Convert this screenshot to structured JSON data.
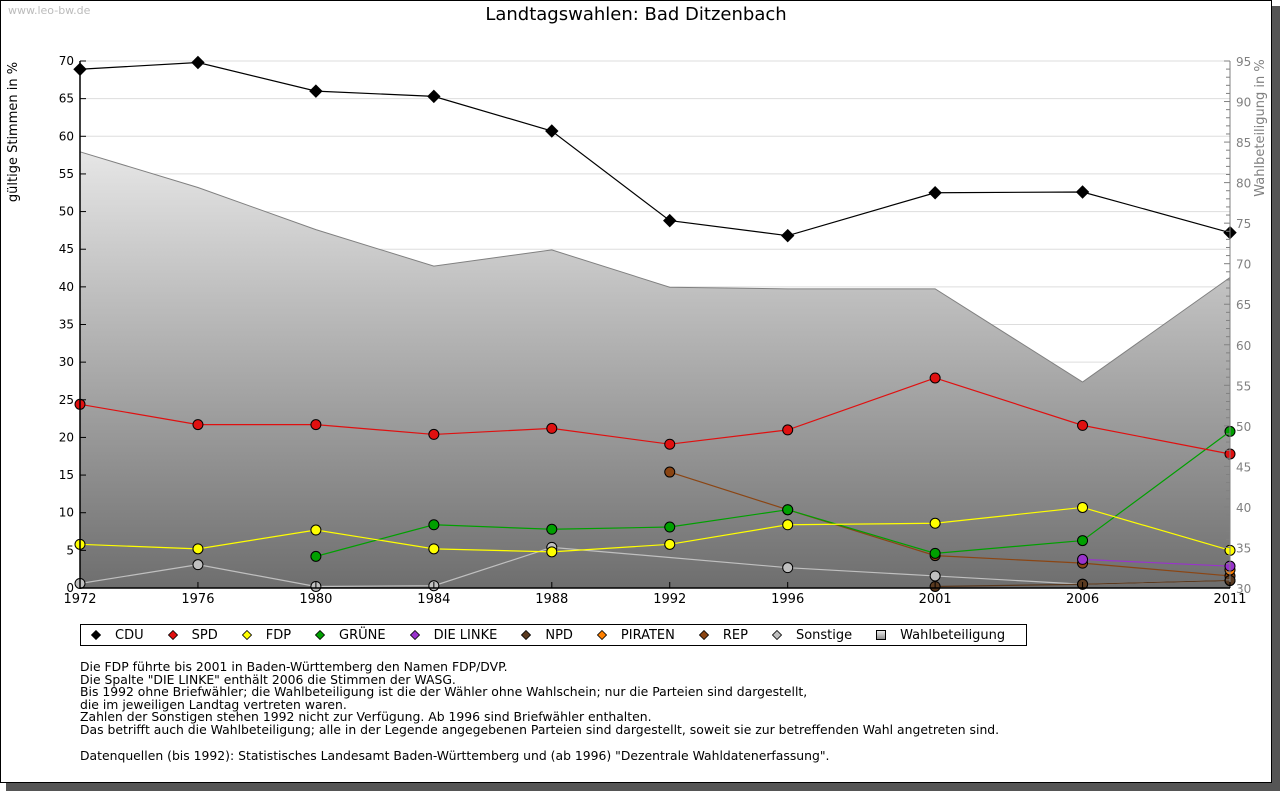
{
  "watermark": "www.leo-bw.de",
  "title": "Landtagswahlen: Bad Ditzenbach",
  "chart_data": {
    "type": "line",
    "title": "Landtagswahlen: Bad Ditzenbach",
    "ylabel": "gültige Stimmen in %",
    "y2label": "Wahlbeteiligung in %",
    "ylim": [
      0,
      70
    ],
    "y2lim": [
      30,
      95
    ],
    "yticks": [
      "0",
      "5",
      "10",
      "15",
      "20",
      "25",
      "30",
      "35",
      "40",
      "45",
      "50",
      "55",
      "60",
      "65",
      "70"
    ],
    "y2ticks": [
      "30",
      "35",
      "40",
      "45",
      "50",
      "55",
      "60",
      "65",
      "70",
      "75",
      "80",
      "85",
      "90",
      "95"
    ],
    "categories": [
      "1972",
      "1976",
      "1980",
      "1984",
      "1988",
      "1992",
      "1996",
      "2001",
      "2006",
      "2011"
    ],
    "grid": true,
    "legend_position": "bottom",
    "series": [
      {
        "name": "CDU",
        "color": "#000000",
        "marker": "diamond",
        "values": [
          68.9,
          69.8,
          66.0,
          65.3,
          60.7,
          48.8,
          46.8,
          52.5,
          52.6,
          47.2
        ]
      },
      {
        "name": "SPD",
        "color": "#e01010",
        "marker": "circle",
        "values": [
          24.4,
          21.7,
          21.7,
          20.4,
          21.2,
          19.1,
          21.0,
          27.9,
          21.6,
          17.8
        ]
      },
      {
        "name": "FDP",
        "color": "#ffff00",
        "marker": "circle",
        "values": [
          5.8,
          5.2,
          7.7,
          5.2,
          4.8,
          5.8,
          8.4,
          8.6,
          10.7,
          5.0
        ]
      },
      {
        "name": "GRÜNE",
        "color": "#00a000",
        "marker": "circle",
        "values": [
          null,
          null,
          4.2,
          8.4,
          7.8,
          8.1,
          10.4,
          4.6,
          6.3,
          20.8
        ]
      },
      {
        "name": "DIE LINKE",
        "color": "#9933cc",
        "marker": "circle",
        "values": [
          null,
          null,
          null,
          null,
          null,
          null,
          null,
          null,
          3.8,
          2.9
        ]
      },
      {
        "name": "NPD",
        "color": "#5a3a20",
        "marker": "circle",
        "values": [
          null,
          null,
          null,
          null,
          null,
          null,
          null,
          0.2,
          0.5,
          1.0
        ]
      },
      {
        "name": "PIRATEN",
        "color": "#ff8000",
        "marker": "circle",
        "values": [
          null,
          null,
          null,
          null,
          null,
          null,
          null,
          null,
          null,
          2.4
        ]
      },
      {
        "name": "REP",
        "color": "#8b4513",
        "marker": "circle",
        "values": [
          null,
          null,
          null,
          null,
          null,
          15.4,
          10.4,
          4.3,
          3.3,
          1.6
        ]
      },
      {
        "name": "Sonstige",
        "color": "#c0c0c0",
        "marker": "circle",
        "values": [
          0.6,
          3.1,
          0.2,
          0.3,
          5.4,
          null,
          2.7,
          1.6,
          0.5,
          1.0
        ]
      },
      {
        "name": "Wahlbeteiligung",
        "color": "#808080",
        "marker": "square",
        "axis": "right",
        "type": "area",
        "values": [
          83.8,
          79.4,
          74.2,
          69.7,
          71.7,
          67.1,
          66.9,
          66.9,
          55.4,
          68.3
        ]
      }
    ]
  },
  "legend": [
    {
      "label": "CDU",
      "color": "#000000",
      "shape": "diamond"
    },
    {
      "label": "SPD",
      "color": "#e01010",
      "shape": "diamond"
    },
    {
      "label": "FDP",
      "color": "#ffff00",
      "shape": "diamond"
    },
    {
      "label": "GRÜNE",
      "color": "#00a000",
      "shape": "diamond"
    },
    {
      "label": "DIE LINKE",
      "color": "#9933cc",
      "shape": "diamond"
    },
    {
      "label": "NPD",
      "color": "#5a3a20",
      "shape": "diamond"
    },
    {
      "label": "PIRATEN",
      "color": "#ff8000",
      "shape": "diamond"
    },
    {
      "label": "REP",
      "color": "#8b4513",
      "shape": "diamond"
    },
    {
      "label": "Sonstige",
      "color": "#c0c0c0",
      "shape": "diamond"
    },
    {
      "label": "Wahlbeteiligung",
      "color": "#c8c8c8",
      "shape": "square"
    }
  ],
  "notes": [
    "Die FDP führte bis 2001 in Baden-Württemberg den Namen FDP/DVP.",
    "Die Spalte \"DIE LINKE\" enthält 2006 die Stimmen der WASG.",
    "Bis 1992 ohne Briefwähler; die Wahlbeteiligung ist die der Wähler ohne Wahlschein; nur die Parteien sind dargestellt,",
    "die im jeweiligen Landtag vertreten waren.",
    "Zahlen der Sonstigen stehen 1992 nicht zur Verfügung. Ab 1996 sind Briefwähler enthalten.",
    "Das betrifft auch die Wahlbeteiligung; alle in der Legende angegebenen Parteien sind dargestellt, soweit sie zur betreffenden Wahl angetreten sind."
  ],
  "source": "Datenquellen (bis 1992): Statistisches Landesamt Baden-Württemberg und (ab 1996) \"Dezentrale Wahldatenerfassung\"."
}
